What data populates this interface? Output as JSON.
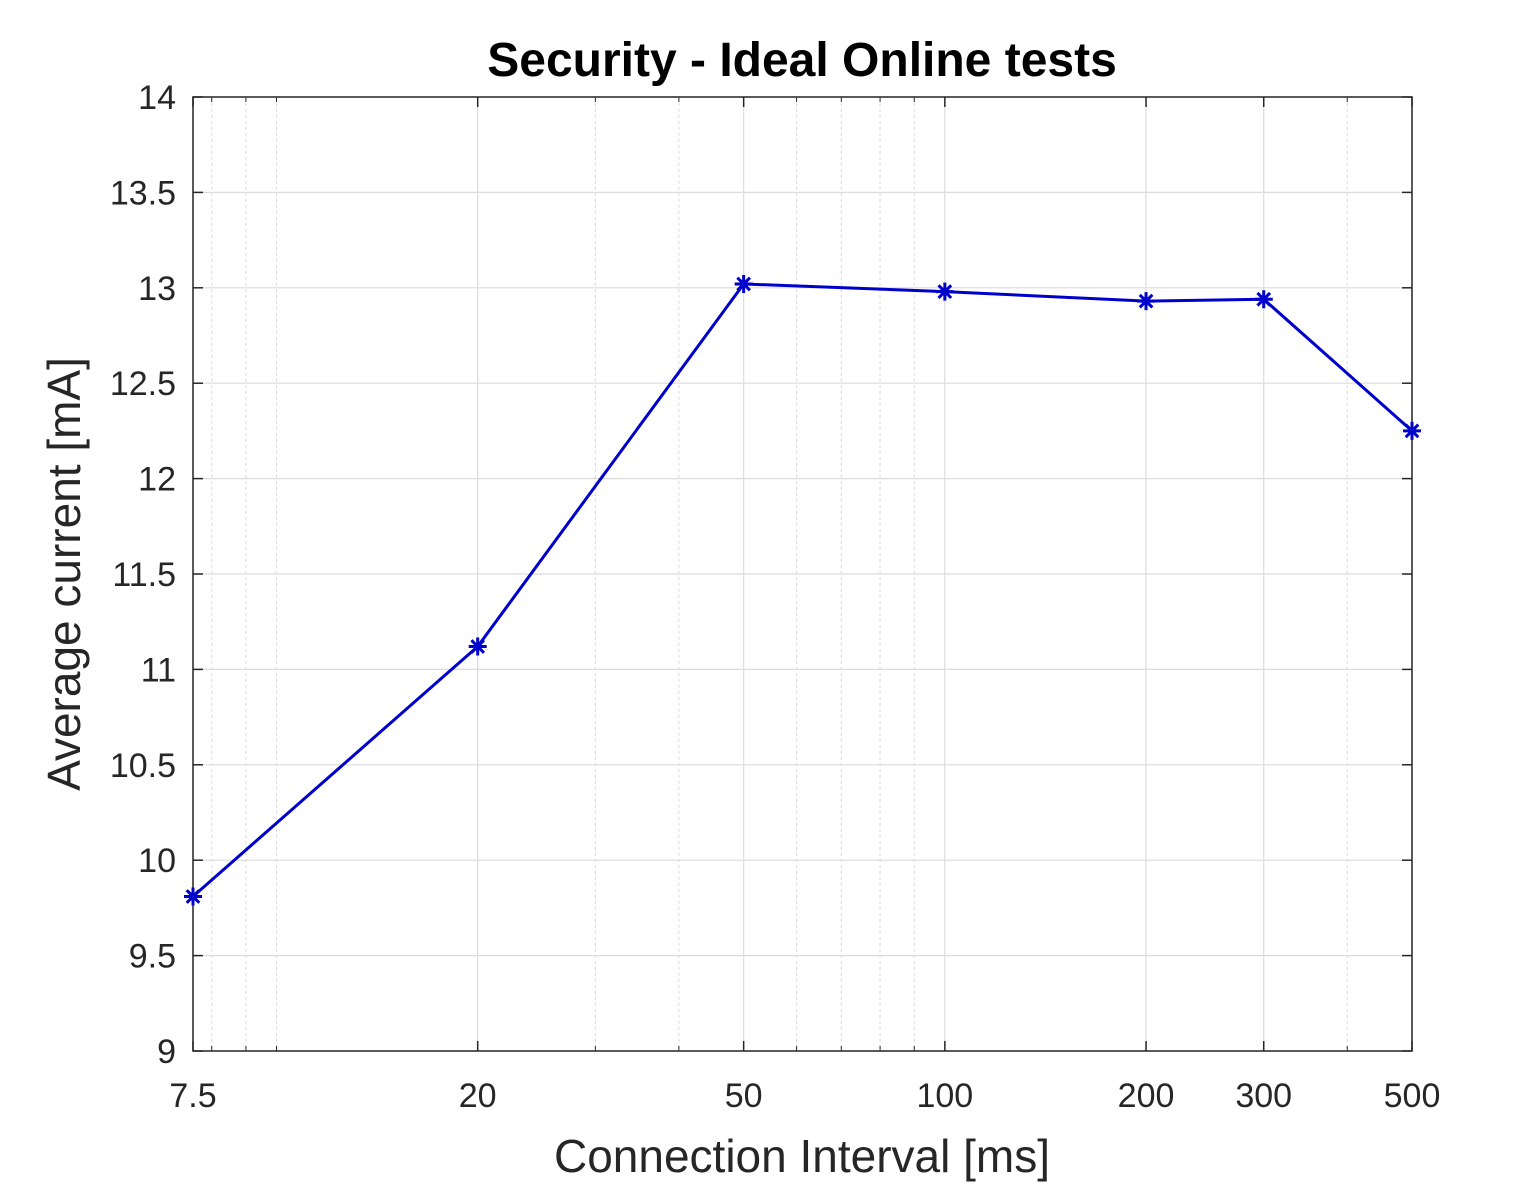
{
  "chart_data": {
    "type": "line",
    "title": "Security - Ideal Online tests",
    "xlabel": "Connection Interval [ms]",
    "ylabel": "Average current [mA]",
    "x_scale": "log",
    "xlim": [
      7.5,
      500
    ],
    "ylim": [
      9,
      14
    ],
    "x_ticks": [
      7.5,
      20,
      50,
      100,
      200,
      300,
      500
    ],
    "x_tick_labels": [
      "7.5",
      "20",
      "50",
      "100",
      "200",
      "300",
      "500"
    ],
    "y_ticks": [
      9,
      9.5,
      10,
      10.5,
      11,
      11.5,
      12,
      12.5,
      13,
      13.5,
      14
    ],
    "y_tick_labels": [
      "9",
      "9.5",
      "10",
      "10.5",
      "11",
      "11.5",
      "12",
      "12.5",
      "13",
      "13.5",
      "14"
    ],
    "grid": true,
    "minor_grid": true,
    "series": [
      {
        "color": "#0000cc",
        "marker": "asterisk",
        "x": [
          7.5,
          20,
          50,
          100,
          200,
          300,
          500
        ],
        "y": [
          9.81,
          11.12,
          13.02,
          12.98,
          12.93,
          12.94,
          12.25
        ]
      }
    ]
  }
}
